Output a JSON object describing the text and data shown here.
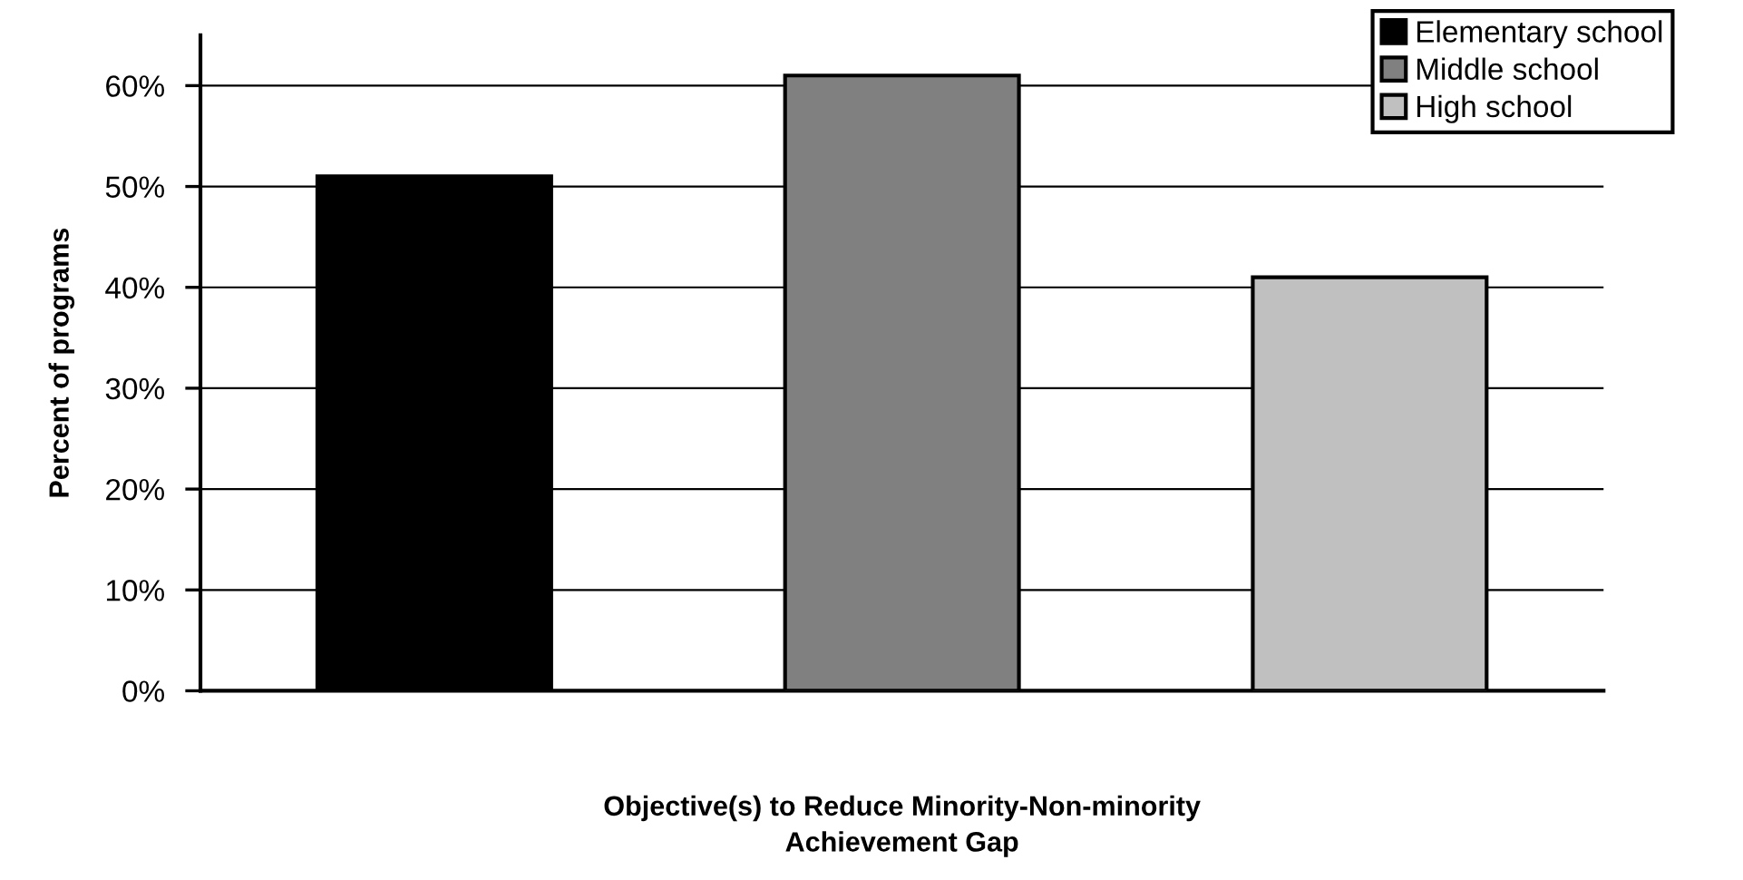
{
  "chart_data": {
    "type": "bar",
    "xlabel": "Objective(s) to Reduce Minority-Non-minority\nAchievement Gap",
    "ylabel": "Percent of programs",
    "categories": [
      null
    ],
    "series": [
      {
        "name": "Elementary school",
        "color": "#000000",
        "values": [
          51
        ]
      },
      {
        "name": "Middle school",
        "color": "#808080",
        "values": [
          61
        ]
      },
      {
        "name": "High school",
        "color": "#c0c0c0",
        "values": [
          41
        ]
      }
    ],
    "ylim": [
      0,
      65
    ],
    "yticks": [
      {
        "value": 0,
        "label": "0%"
      },
      {
        "value": 10,
        "label": "10%"
      },
      {
        "value": 20,
        "label": "20%"
      },
      {
        "value": 30,
        "label": "30%"
      },
      {
        "value": 40,
        "label": "40%"
      },
      {
        "value": 50,
        "label": "50%"
      },
      {
        "value": 60,
        "label": "60%"
      }
    ],
    "grid": "y",
    "legend": "top right"
  }
}
